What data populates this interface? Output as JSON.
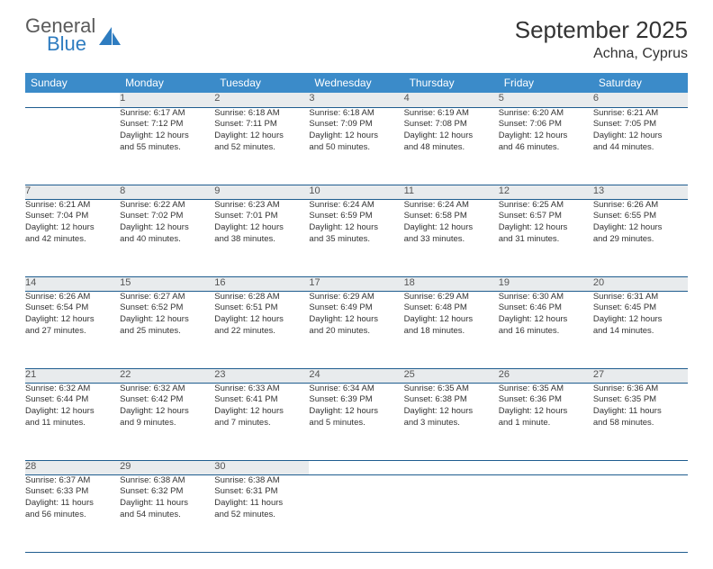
{
  "brand": {
    "word1": "General",
    "word2": "Blue"
  },
  "title": "September 2025",
  "location": "Achna, Cyprus",
  "colors": {
    "header_bg": "#3b8bc9",
    "header_text": "#ffffff",
    "daynum_bg": "#e8ebed",
    "border": "#1f5d8f",
    "logo_gray": "#5a5a5a",
    "logo_blue": "#2e7cc0"
  },
  "weekdays": [
    "Sunday",
    "Monday",
    "Tuesday",
    "Wednesday",
    "Thursday",
    "Friday",
    "Saturday"
  ],
  "weeks": [
    {
      "nums": [
        "",
        "1",
        "2",
        "3",
        "4",
        "5",
        "6"
      ],
      "cells": [
        null,
        {
          "sunrise": "Sunrise: 6:17 AM",
          "sunset": "Sunset: 7:12 PM",
          "day1": "Daylight: 12 hours",
          "day2": "and 55 minutes."
        },
        {
          "sunrise": "Sunrise: 6:18 AM",
          "sunset": "Sunset: 7:11 PM",
          "day1": "Daylight: 12 hours",
          "day2": "and 52 minutes."
        },
        {
          "sunrise": "Sunrise: 6:18 AM",
          "sunset": "Sunset: 7:09 PM",
          "day1": "Daylight: 12 hours",
          "day2": "and 50 minutes."
        },
        {
          "sunrise": "Sunrise: 6:19 AM",
          "sunset": "Sunset: 7:08 PM",
          "day1": "Daylight: 12 hours",
          "day2": "and 48 minutes."
        },
        {
          "sunrise": "Sunrise: 6:20 AM",
          "sunset": "Sunset: 7:06 PM",
          "day1": "Daylight: 12 hours",
          "day2": "and 46 minutes."
        },
        {
          "sunrise": "Sunrise: 6:21 AM",
          "sunset": "Sunset: 7:05 PM",
          "day1": "Daylight: 12 hours",
          "day2": "and 44 minutes."
        }
      ]
    },
    {
      "nums": [
        "7",
        "8",
        "9",
        "10",
        "11",
        "12",
        "13"
      ],
      "cells": [
        {
          "sunrise": "Sunrise: 6:21 AM",
          "sunset": "Sunset: 7:04 PM",
          "day1": "Daylight: 12 hours",
          "day2": "and 42 minutes."
        },
        {
          "sunrise": "Sunrise: 6:22 AM",
          "sunset": "Sunset: 7:02 PM",
          "day1": "Daylight: 12 hours",
          "day2": "and 40 minutes."
        },
        {
          "sunrise": "Sunrise: 6:23 AM",
          "sunset": "Sunset: 7:01 PM",
          "day1": "Daylight: 12 hours",
          "day2": "and 38 minutes."
        },
        {
          "sunrise": "Sunrise: 6:24 AM",
          "sunset": "Sunset: 6:59 PM",
          "day1": "Daylight: 12 hours",
          "day2": "and 35 minutes."
        },
        {
          "sunrise": "Sunrise: 6:24 AM",
          "sunset": "Sunset: 6:58 PM",
          "day1": "Daylight: 12 hours",
          "day2": "and 33 minutes."
        },
        {
          "sunrise": "Sunrise: 6:25 AM",
          "sunset": "Sunset: 6:57 PM",
          "day1": "Daylight: 12 hours",
          "day2": "and 31 minutes."
        },
        {
          "sunrise": "Sunrise: 6:26 AM",
          "sunset": "Sunset: 6:55 PM",
          "day1": "Daylight: 12 hours",
          "day2": "and 29 minutes."
        }
      ]
    },
    {
      "nums": [
        "14",
        "15",
        "16",
        "17",
        "18",
        "19",
        "20"
      ],
      "cells": [
        {
          "sunrise": "Sunrise: 6:26 AM",
          "sunset": "Sunset: 6:54 PM",
          "day1": "Daylight: 12 hours",
          "day2": "and 27 minutes."
        },
        {
          "sunrise": "Sunrise: 6:27 AM",
          "sunset": "Sunset: 6:52 PM",
          "day1": "Daylight: 12 hours",
          "day2": "and 25 minutes."
        },
        {
          "sunrise": "Sunrise: 6:28 AM",
          "sunset": "Sunset: 6:51 PM",
          "day1": "Daylight: 12 hours",
          "day2": "and 22 minutes."
        },
        {
          "sunrise": "Sunrise: 6:29 AM",
          "sunset": "Sunset: 6:49 PM",
          "day1": "Daylight: 12 hours",
          "day2": "and 20 minutes."
        },
        {
          "sunrise": "Sunrise: 6:29 AM",
          "sunset": "Sunset: 6:48 PM",
          "day1": "Daylight: 12 hours",
          "day2": "and 18 minutes."
        },
        {
          "sunrise": "Sunrise: 6:30 AM",
          "sunset": "Sunset: 6:46 PM",
          "day1": "Daylight: 12 hours",
          "day2": "and 16 minutes."
        },
        {
          "sunrise": "Sunrise: 6:31 AM",
          "sunset": "Sunset: 6:45 PM",
          "day1": "Daylight: 12 hours",
          "day2": "and 14 minutes."
        }
      ]
    },
    {
      "nums": [
        "21",
        "22",
        "23",
        "24",
        "25",
        "26",
        "27"
      ],
      "cells": [
        {
          "sunrise": "Sunrise: 6:32 AM",
          "sunset": "Sunset: 6:44 PM",
          "day1": "Daylight: 12 hours",
          "day2": "and 11 minutes."
        },
        {
          "sunrise": "Sunrise: 6:32 AM",
          "sunset": "Sunset: 6:42 PM",
          "day1": "Daylight: 12 hours",
          "day2": "and 9 minutes."
        },
        {
          "sunrise": "Sunrise: 6:33 AM",
          "sunset": "Sunset: 6:41 PM",
          "day1": "Daylight: 12 hours",
          "day2": "and 7 minutes."
        },
        {
          "sunrise": "Sunrise: 6:34 AM",
          "sunset": "Sunset: 6:39 PM",
          "day1": "Daylight: 12 hours",
          "day2": "and 5 minutes."
        },
        {
          "sunrise": "Sunrise: 6:35 AM",
          "sunset": "Sunset: 6:38 PM",
          "day1": "Daylight: 12 hours",
          "day2": "and 3 minutes."
        },
        {
          "sunrise": "Sunrise: 6:35 AM",
          "sunset": "Sunset: 6:36 PM",
          "day1": "Daylight: 12 hours",
          "day2": "and 1 minute."
        },
        {
          "sunrise": "Sunrise: 6:36 AM",
          "sunset": "Sunset: 6:35 PM",
          "day1": "Daylight: 11 hours",
          "day2": "and 58 minutes."
        }
      ]
    },
    {
      "nums": [
        "28",
        "29",
        "30",
        "",
        "",
        "",
        ""
      ],
      "cells": [
        {
          "sunrise": "Sunrise: 6:37 AM",
          "sunset": "Sunset: 6:33 PM",
          "day1": "Daylight: 11 hours",
          "day2": "and 56 minutes."
        },
        {
          "sunrise": "Sunrise: 6:38 AM",
          "sunset": "Sunset: 6:32 PM",
          "day1": "Daylight: 11 hours",
          "day2": "and 54 minutes."
        },
        {
          "sunrise": "Sunrise: 6:38 AM",
          "sunset": "Sunset: 6:31 PM",
          "day1": "Daylight: 11 hours",
          "day2": "and 52 minutes."
        },
        null,
        null,
        null,
        null
      ]
    }
  ]
}
